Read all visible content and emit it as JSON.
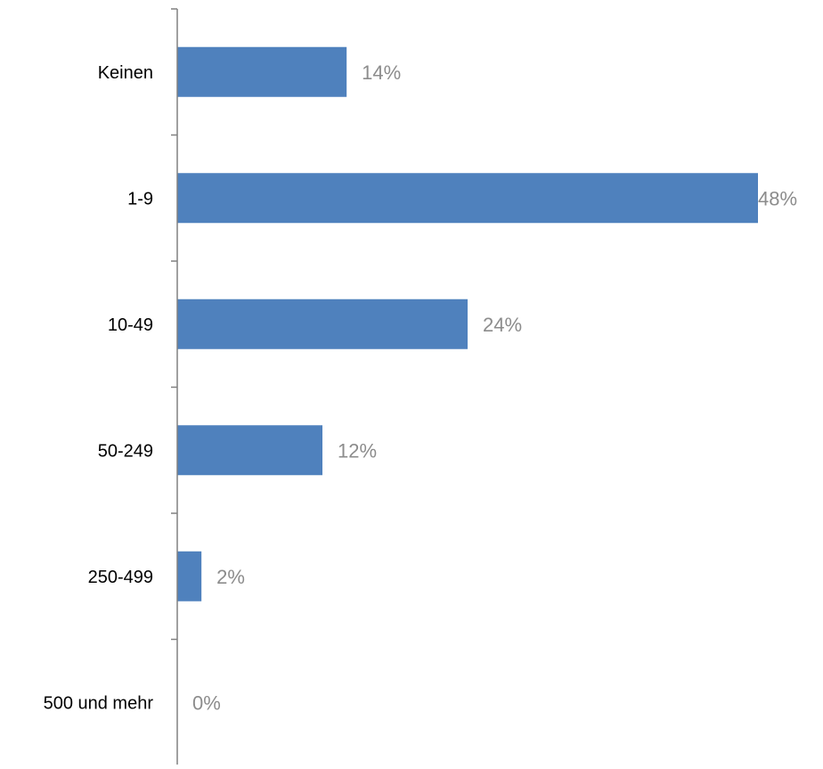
{
  "chart_data": {
    "type": "bar",
    "orientation": "horizontal",
    "categories": [
      "Keinen",
      "1-9",
      "10-49",
      "50-249",
      "250-499",
      "500 und mehr"
    ],
    "values": [
      14,
      48,
      24,
      12,
      2,
      0
    ],
    "data_labels": [
      "14%",
      "48%",
      "24%",
      "12%",
      "2%",
      "0%"
    ],
    "value_unit": "%",
    "title": "",
    "xlabel": "",
    "ylabel": "",
    "xlim": [
      0,
      48
    ],
    "grid": false,
    "legend": "none",
    "colors": {
      "bar": "#4f81bd",
      "axis": "#808080",
      "category_label": "#000000",
      "value_label": "#8c8c8c"
    }
  }
}
